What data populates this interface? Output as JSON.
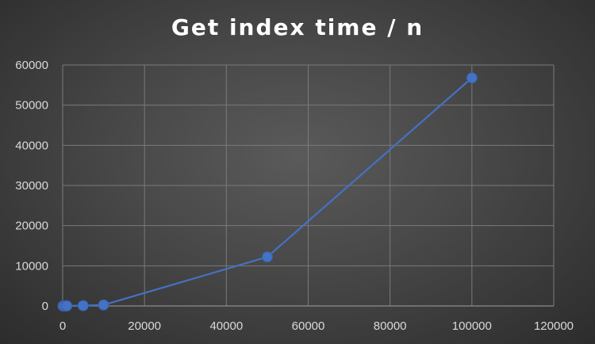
{
  "chart_data": {
    "type": "scatter",
    "title": "Get index time / n",
    "xlabel": "",
    "ylabel": "",
    "xlim": [
      0,
      120000
    ],
    "ylim": [
      0,
      60000
    ],
    "x_ticks": [
      "0",
      "20000",
      "40000",
      "60000",
      "80000",
      "100000",
      "120000"
    ],
    "y_ticks": [
      "0",
      "10000",
      "20000",
      "30000",
      "40000",
      "50000",
      "60000"
    ],
    "grid": true,
    "legend": "none",
    "series": [
      {
        "color": "#4472c4",
        "points": [
          {
            "x": 100,
            "y": 0
          },
          {
            "x": 500,
            "y": 0
          },
          {
            "x": 1000,
            "y": 20
          },
          {
            "x": 5000,
            "y": 80
          },
          {
            "x": 10000,
            "y": 250
          },
          {
            "x": 50000,
            "y": 12200
          },
          {
            "x": 100000,
            "y": 56800
          }
        ]
      }
    ]
  }
}
